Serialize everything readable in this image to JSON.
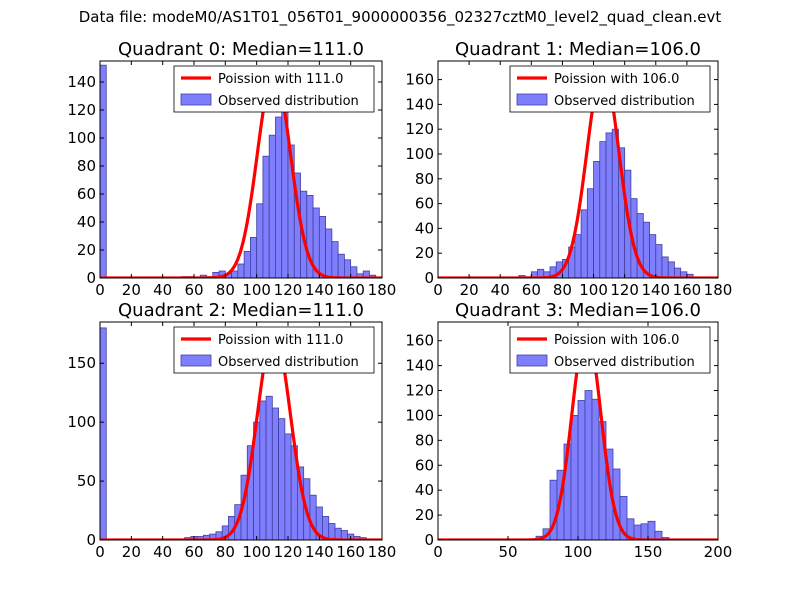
{
  "figure": {
    "suptitle": "Data file: modeM0/AS1T01_056T01_9000000356_02327cztM0_level2_quad_clean.evt"
  },
  "colors": {
    "bar_fill": "#7f7ffe",
    "bar_edge": "#4040a0",
    "poisson_line": "#ff0000"
  },
  "chart_data": [
    {
      "type": "bar",
      "title": "Quadrant 0: Median=111.0",
      "xlim": [
        0,
        180
      ],
      "ylim": [
        0,
        155
      ],
      "xticks": [
        0,
        20,
        40,
        60,
        80,
        100,
        120,
        140,
        160,
        180
      ],
      "yticks": [
        0,
        20,
        40,
        60,
        80,
        100,
        120,
        140
      ],
      "bin_width": 4,
      "bins": [
        [
          0,
          152
        ],
        [
          52,
          1
        ],
        [
          56,
          1
        ],
        [
          64,
          2
        ],
        [
          68,
          1
        ],
        [
          72,
          4
        ],
        [
          76,
          5
        ],
        [
          80,
          3
        ],
        [
          84,
          5
        ],
        [
          88,
          10
        ],
        [
          92,
          19
        ],
        [
          96,
          29
        ],
        [
          100,
          53
        ],
        [
          104,
          87
        ],
        [
          108,
          102
        ],
        [
          112,
          115
        ],
        [
          116,
          122
        ],
        [
          120,
          95
        ],
        [
          124,
          75
        ],
        [
          128,
          62
        ],
        [
          132,
          59
        ],
        [
          136,
          50
        ],
        [
          140,
          44
        ],
        [
          144,
          35
        ],
        [
          148,
          26
        ],
        [
          152,
          17
        ],
        [
          156,
          13
        ],
        [
          160,
          8
        ],
        [
          164,
          3
        ],
        [
          168,
          5
        ],
        [
          172,
          2
        ]
      ],
      "poisson_mean": 111,
      "poisson_peak": 147,
      "legend": [
        "Poission with 111.0",
        "Observed distribution"
      ]
    },
    {
      "type": "bar",
      "title": "Quadrant 1: Median=106.0",
      "xlim": [
        0,
        180
      ],
      "ylim": [
        0,
        175
      ],
      "xticks": [
        0,
        20,
        40,
        60,
        80,
        100,
        120,
        140,
        160,
        180
      ],
      "yticks": [
        0,
        20,
        40,
        60,
        80,
        100,
        120,
        140,
        160
      ],
      "bin_width": 4,
      "bins": [
        [
          52,
          2
        ],
        [
          56,
          1
        ],
        [
          60,
          5
        ],
        [
          64,
          7
        ],
        [
          68,
          5
        ],
        [
          72,
          9
        ],
        [
          76,
          13
        ],
        [
          80,
          15
        ],
        [
          84,
          25
        ],
        [
          88,
          35
        ],
        [
          92,
          55
        ],
        [
          96,
          72
        ],
        [
          100,
          94
        ],
        [
          104,
          110
        ],
        [
          108,
          117
        ],
        [
          112,
          120
        ],
        [
          116,
          105
        ],
        [
          120,
          87
        ],
        [
          124,
          64
        ],
        [
          128,
          52
        ],
        [
          132,
          45
        ],
        [
          136,
          35
        ],
        [
          140,
          27
        ],
        [
          144,
          17
        ],
        [
          148,
          13
        ],
        [
          152,
          8
        ],
        [
          156,
          5
        ],
        [
          160,
          3
        ]
      ],
      "poisson_mean": 106,
      "poisson_peak": 168,
      "legend": [
        "Poission with 106.0",
        "Observed distribution"
      ]
    },
    {
      "type": "bar",
      "title": "Quadrant 2: Median=111.0",
      "xlim": [
        0,
        180
      ],
      "ylim": [
        0,
        185
      ],
      "xticks": [
        0,
        20,
        40,
        60,
        80,
        100,
        120,
        140,
        160,
        180
      ],
      "yticks": [
        0,
        50,
        100,
        150
      ],
      "bin_width": 4,
      "bins": [
        [
          0,
          180
        ],
        [
          54,
          2
        ],
        [
          58,
          3
        ],
        [
          62,
          3
        ],
        [
          66,
          4
        ],
        [
          70,
          5
        ],
        [
          74,
          7
        ],
        [
          78,
          12
        ],
        [
          82,
          20
        ],
        [
          86,
          30
        ],
        [
          90,
          55
        ],
        [
          94,
          80
        ],
        [
          98,
          100
        ],
        [
          102,
          118
        ],
        [
          106,
          122
        ],
        [
          110,
          112
        ],
        [
          114,
          103
        ],
        [
          118,
          90
        ],
        [
          122,
          80
        ],
        [
          126,
          62
        ],
        [
          130,
          52
        ],
        [
          134,
          38
        ],
        [
          138,
          28
        ],
        [
          142,
          20
        ],
        [
          146,
          14
        ],
        [
          150,
          10
        ],
        [
          154,
          8
        ],
        [
          158,
          5
        ],
        [
          162,
          3
        ],
        [
          166,
          2
        ]
      ],
      "poisson_mean": 111,
      "poisson_peak": 176,
      "legend": [
        "Poission with 111.0",
        "Observed distribution"
      ]
    },
    {
      "type": "bar",
      "title": "Quadrant 3: Median=106.0",
      "xlim": [
        0,
        200
      ],
      "ylim": [
        0,
        175
      ],
      "xticks": [
        0,
        50,
        100,
        150,
        200
      ],
      "yticks": [
        0,
        20,
        40,
        60,
        80,
        100,
        120,
        140,
        160
      ],
      "bin_width": 5,
      "bins": [
        [
          70,
          3
        ],
        [
          75,
          9
        ],
        [
          80,
          48
        ],
        [
          85,
          56
        ],
        [
          90,
          77
        ],
        [
          95,
          100
        ],
        [
          100,
          112
        ],
        [
          105,
          120
        ],
        [
          110,
          113
        ],
        [
          115,
          95
        ],
        [
          120,
          73
        ],
        [
          125,
          57
        ],
        [
          130,
          35
        ],
        [
          135,
          17
        ],
        [
          140,
          12
        ],
        [
          145,
          13
        ],
        [
          150,
          15
        ],
        [
          155,
          7
        ],
        [
          160,
          2
        ]
      ],
      "poisson_mean": 106,
      "poisson_peak": 168,
      "legend": [
        "Poission with 106.0",
        "Observed distribution"
      ]
    }
  ]
}
